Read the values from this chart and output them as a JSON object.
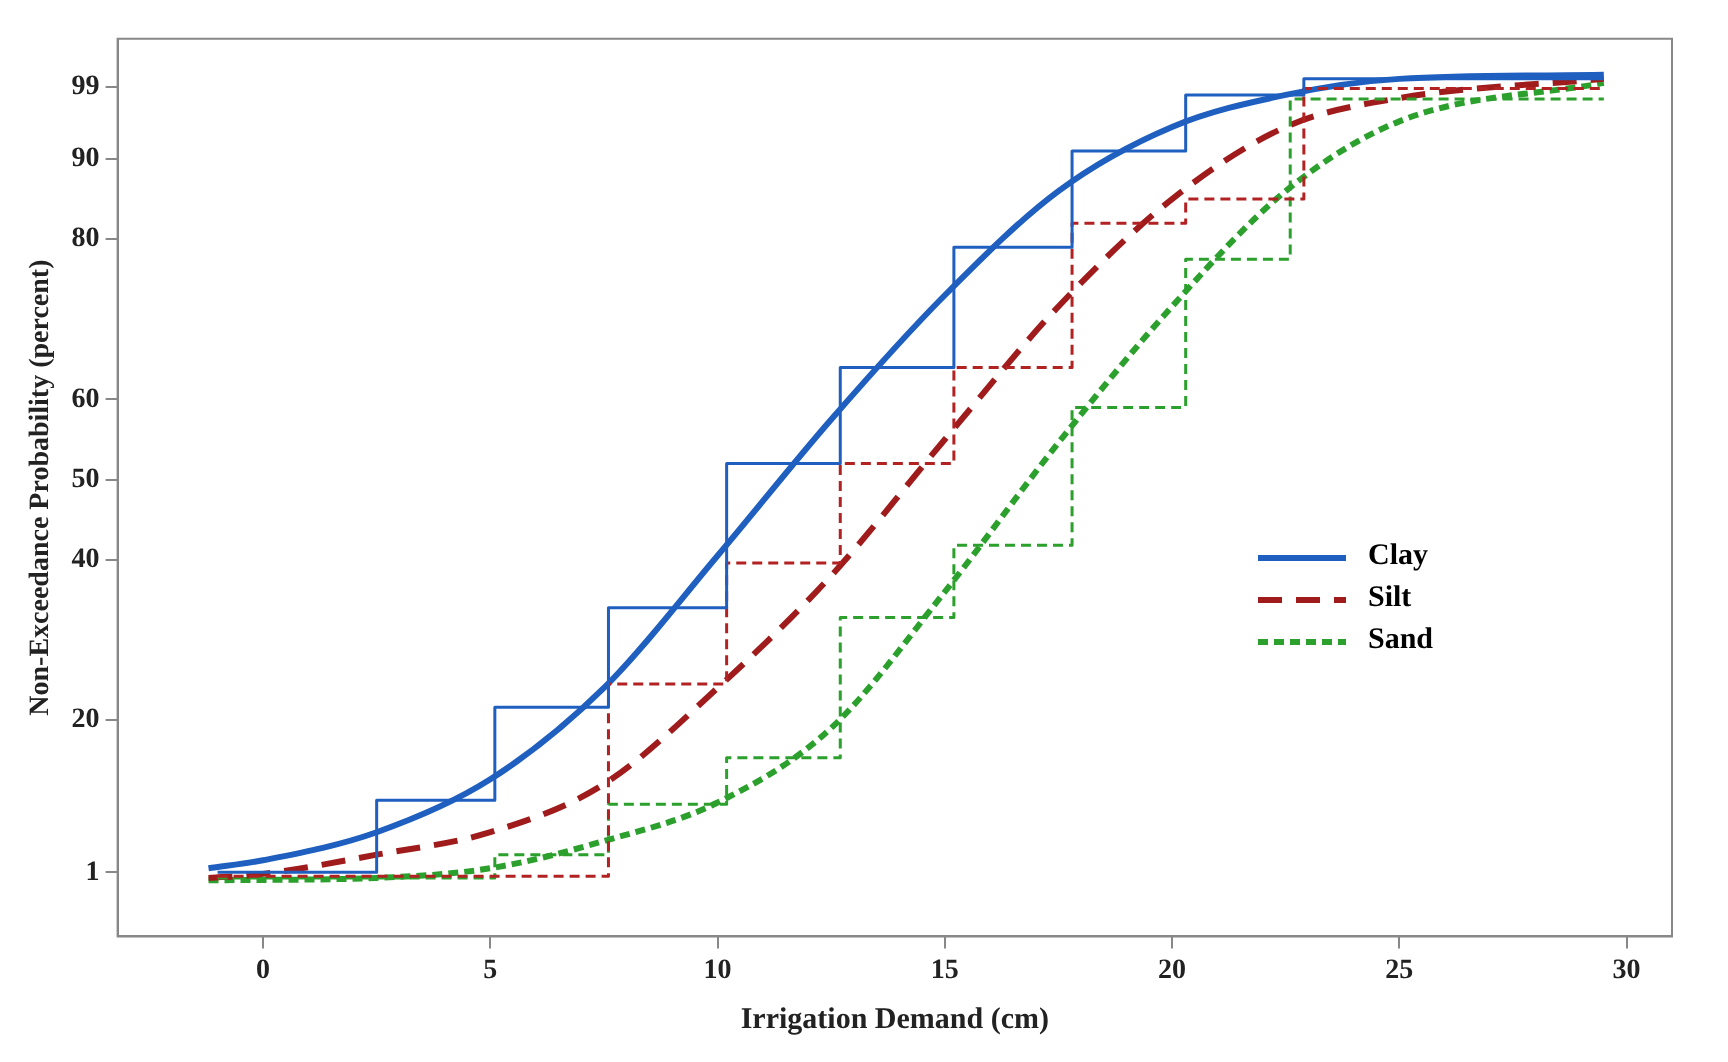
{
  "chart_data": {
    "type": "line",
    "xlabel": "Irrigation Demand (cm)",
    "ylabel": "Non-Exceedance Probability (percent)",
    "xlim": [
      -3.2,
      31
    ],
    "xticks": [
      0,
      5,
      10,
      15,
      20,
      25,
      30
    ],
    "ylim": [
      -7,
      105
    ],
    "yticks": [
      1,
      20,
      40,
      50,
      60,
      80,
      90,
      99
    ],
    "grid": false,
    "legend": "right",
    "marker": "none",
    "series": [
      {
        "type": "step",
        "color": "#1f5fbf",
        "line_style": "solid",
        "x": [
          -1,
          2.5,
          5.1,
          7.6,
          10.2,
          12.7,
          15.2,
          17.8,
          20.3,
          22.9,
          29.5
        ],
        "values": [
          1,
          10,
          21.6,
          34,
          52,
          64,
          79,
          91,
          98,
          100,
          100
        ]
      },
      {
        "type": "step",
        "color": "#b22222",
        "line_style": "dashed",
        "x": [
          -1,
          7.6,
          10.2,
          12.7,
          15.2,
          17.8,
          20.3,
          22.9,
          29.5
        ],
        "values": [
          0.5,
          24.5,
          39.6,
          52,
          64,
          82,
          85,
          98.8,
          98.8
        ]
      },
      {
        "type": "step",
        "color": "#2ca02c",
        "line_style": "dashed",
        "x": [
          -1,
          5.1,
          7.6,
          10.2,
          12.7,
          15.2,
          17.8,
          20.3,
          22.6,
          29.5
        ],
        "values": [
          0.3,
          3.2,
          9.5,
          15.3,
          32.8,
          41.8,
          59,
          77.5,
          97.5,
          97.5
        ]
      },
      {
        "type": "line",
        "name": "Clay",
        "color": "#1f5fbf",
        "line_style": "solid",
        "x": [
          -1.2,
          0,
          2.5,
          5,
          7.5,
          10,
          12.5,
          15,
          17.5,
          20,
          22.5,
          25,
          29.5
        ],
        "values": [
          1.5,
          2.5,
          6,
          12.6,
          24,
          40.5,
          57.5,
          73,
          86,
          94,
          98,
          100,
          100.5
        ]
      },
      {
        "type": "line",
        "name": "Silt",
        "color": "#a01c1c",
        "line_style": "dashed",
        "x": [
          -1.2,
          0,
          2.5,
          5,
          7.5,
          10,
          12.5,
          15,
          17.5,
          20,
          22.5,
          25,
          29.5
        ],
        "values": [
          0.3,
          0.8,
          3.2,
          6,
          12,
          24,
          38,
          55,
          71.6,
          85,
          94,
          97.6,
          100
        ]
      },
      {
        "type": "line",
        "name": "Sand",
        "color": "#2ca02c",
        "line_style": "dotted",
        "x": [
          -1.2,
          2.5,
          5,
          7.5,
          10,
          12.5,
          15,
          17.5,
          20,
          22.5,
          25,
          29.5
        ],
        "values": [
          0,
          0.3,
          1.5,
          4.9,
          9.7,
          19,
          36,
          54.6,
          71.6,
          86,
          94.7,
          99.5
        ]
      }
    ]
  }
}
